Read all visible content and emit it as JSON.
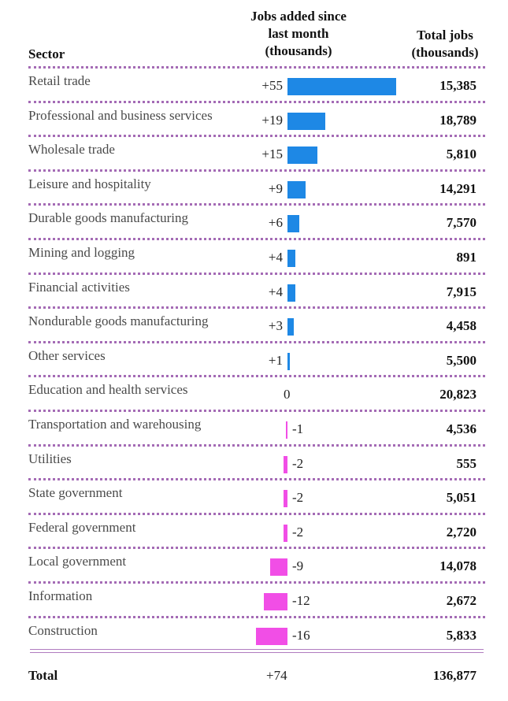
{
  "headers": {
    "sector": "Sector",
    "jobs_added_line1": "Jobs added since",
    "jobs_added_line2": "last month",
    "jobs_added_line3": "(thousands)",
    "total_line1": "Total jobs",
    "total_line2": "(thousands)"
  },
  "colors": {
    "positive": "#1e88e5",
    "negative": "#f14ee6",
    "divider": "#a46bb5"
  },
  "chart_data": {
    "type": "table",
    "title": "",
    "columns": [
      "Sector",
      "Jobs added since last month (thousands)",
      "Total jobs (thousands)"
    ],
    "rows": [
      {
        "sector": "Retail trade",
        "change": 55,
        "change_label": "+55",
        "total": "15,385"
      },
      {
        "sector": "Professional and business services",
        "change": 19,
        "change_label": "+19",
        "total": "18,789"
      },
      {
        "sector": "Wholesale trade",
        "change": 15,
        "change_label": "+15",
        "total": "5,810"
      },
      {
        "sector": "Leisure and hospitality",
        "change": 9,
        "change_label": "+9",
        "total": "14,291"
      },
      {
        "sector": "Durable goods manufacturing",
        "change": 6,
        "change_label": "+6",
        "total": "7,570"
      },
      {
        "sector": "Mining and logging",
        "change": 4,
        "change_label": "+4",
        "total": "891"
      },
      {
        "sector": "Financial activities",
        "change": 4,
        "change_label": "+4",
        "total": "7,915"
      },
      {
        "sector": "Nondurable goods manufacturing",
        "change": 3,
        "change_label": "+3",
        "total": "4,458"
      },
      {
        "sector": "Other services",
        "change": 1,
        "change_label": "+1",
        "total": "5,500"
      },
      {
        "sector": "Education and health services",
        "change": 0,
        "change_label": "0",
        "total": "20,823"
      },
      {
        "sector": "Transportation and warehousing",
        "change": -1,
        "change_label": "-1",
        "total": "4,536"
      },
      {
        "sector": "Utilities",
        "change": -2,
        "change_label": "-2",
        "total": "555"
      },
      {
        "sector": "State government",
        "change": -2,
        "change_label": "-2",
        "total": "5,051"
      },
      {
        "sector": "Federal government",
        "change": -2,
        "change_label": "-2",
        "total": "2,720"
      },
      {
        "sector": "Local government",
        "change": -9,
        "change_label": "-9",
        "total": "14,078"
      },
      {
        "sector": "Information",
        "change": -12,
        "change_label": "-12",
        "total": "2,672"
      },
      {
        "sector": "Construction",
        "change": -16,
        "change_label": "-16",
        "total": "5,833"
      }
    ],
    "total": {
      "label": "Total",
      "change_label": "+74",
      "total": "136,877"
    }
  }
}
